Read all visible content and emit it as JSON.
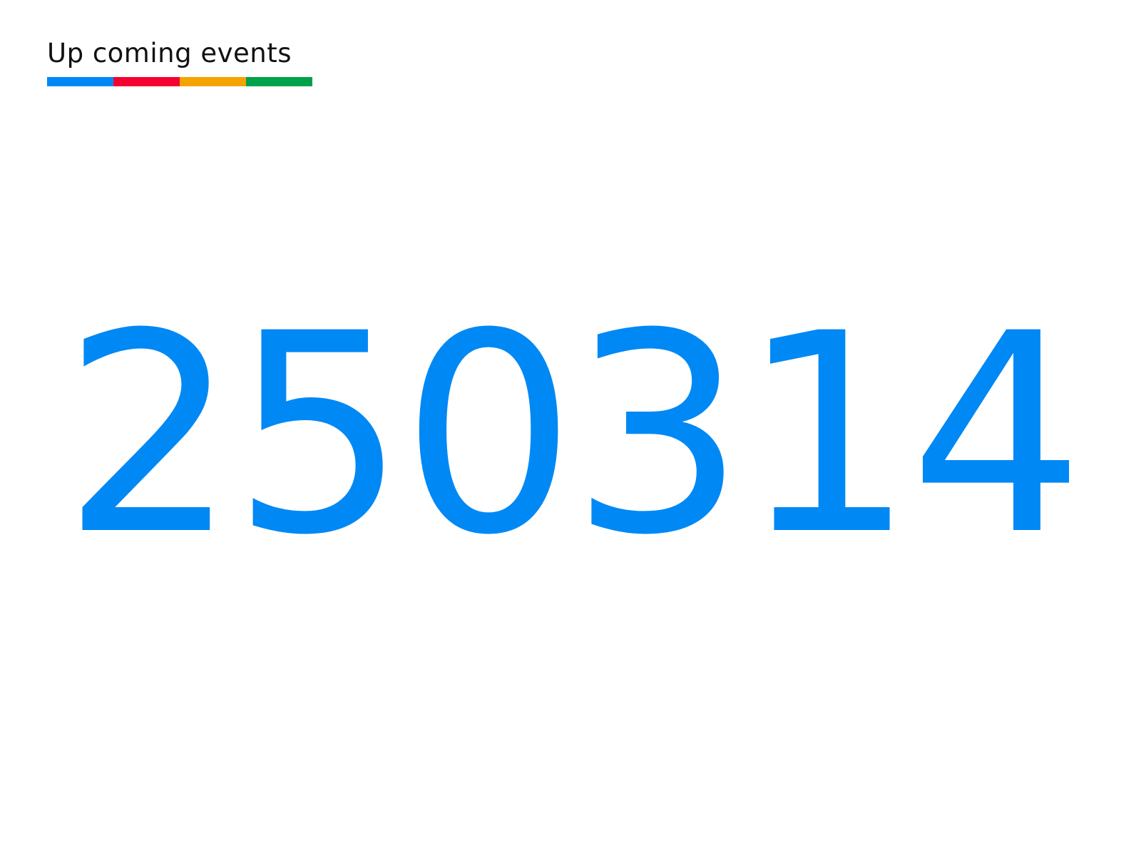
{
  "header": {
    "title": "Up coming events",
    "bar_colors": [
      "#0088f5",
      "#f50030",
      "#f5a300",
      "#00a14b"
    ]
  },
  "main": {
    "value": "250314",
    "value_color": "#0088f5"
  }
}
